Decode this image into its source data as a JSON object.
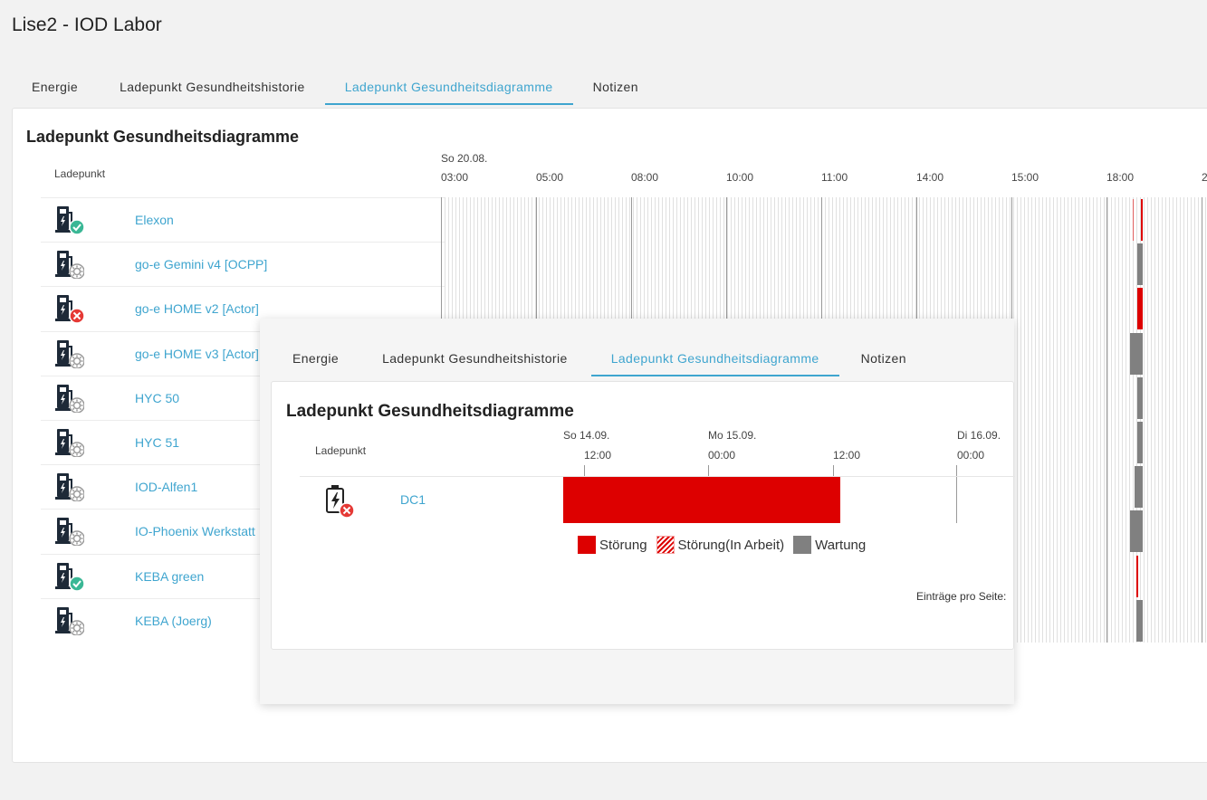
{
  "page": {
    "title": "Lise2 - IOD Labor"
  },
  "tabs": [
    {
      "label": "Energie",
      "active": false
    },
    {
      "label": "Ladepunkt Gesundheitshistorie",
      "active": false
    },
    {
      "label": "Ladepunkt Gesundheitsdiagramme",
      "active": true
    },
    {
      "label": "Notizen",
      "active": false
    }
  ],
  "main": {
    "title": "Ladepunkt Gesundheitsdiagramme",
    "column_header": "Ladepunkt",
    "axis_date": "So 20.08.",
    "axis_ticks": [
      "03:00",
      "05:00",
      "08:00",
      "10:00",
      "11:00",
      "14:00",
      "15:00",
      "18:00",
      "2"
    ],
    "rows": [
      {
        "name": "Elexon",
        "status": "ok"
      },
      {
        "name": "go-e Gemini v4 [OCPP]",
        "status": "maintenance"
      },
      {
        "name": "go-e HOME v2 [Actor]",
        "status": "error"
      },
      {
        "name": "go-e HOME v3 [Actor]",
        "status": "maintenance"
      },
      {
        "name": "HYC 50",
        "status": "maintenance"
      },
      {
        "name": "HYC 51",
        "status": "maintenance"
      },
      {
        "name": "IOD-Alfen1",
        "status": "maintenance"
      },
      {
        "name": "IO-Phoenix Werkstatt",
        "status": "maintenance"
      },
      {
        "name": "KEBA green",
        "status": "ok"
      },
      {
        "name": "KEBA (Joerg)",
        "status": "maintenance"
      }
    ]
  },
  "overlay": {
    "tabs": [
      {
        "label": "Energie",
        "active": false
      },
      {
        "label": "Ladepunkt Gesundheitshistorie",
        "active": false
      },
      {
        "label": "Ladepunkt Gesundheitsdiagramme",
        "active": true
      },
      {
        "label": "Notizen",
        "active": false
      }
    ],
    "title": "Ladepunkt Gesundheitsdiagramme",
    "column_header": "Ladepunkt",
    "axis_dates": [
      "So 14.09.",
      "Mo 15.09.",
      "Di 16.09."
    ],
    "axis_ticks": [
      "12:00",
      "00:00",
      "12:00",
      "00:00"
    ],
    "row": {
      "name": "DC1",
      "status": "error"
    },
    "legend": [
      {
        "label": "Störung",
        "color": "#dd0000",
        "pattern": "solid"
      },
      {
        "label": "Störung(In Arbeit)",
        "color": "#dd0000",
        "pattern": "hatched"
      },
      {
        "label": "Wartung",
        "color": "#808080",
        "pattern": "solid"
      }
    ],
    "entries_per_page_label": "Einträge pro Seite:"
  },
  "colors": {
    "accent": "#3fa5cf",
    "error": "#dd0000",
    "maintenance": "#808080",
    "ok_badge": "#3ab795",
    "error_badge": "#e53935"
  }
}
